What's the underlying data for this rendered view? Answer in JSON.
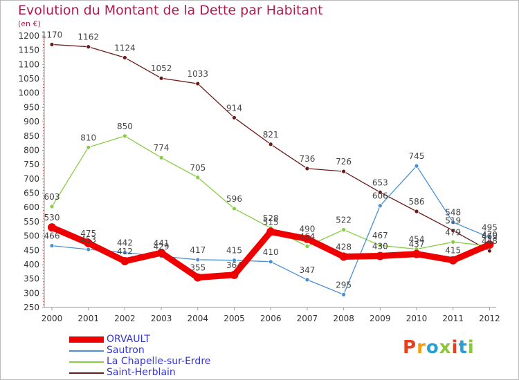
{
  "title": "Evolution du Montant de la Dette par Habitant",
  "subtitle": "(en €)",
  "brand": {
    "text": "Proxiti",
    "letter_colors": [
      "#e8401c",
      "#f39c12",
      "#2a9fd6",
      "#8cc63f",
      "#e8401c",
      "#2a9fd6",
      "#8cc63f"
    ]
  },
  "chart_data": {
    "type": "line",
    "x": [
      2000,
      2001,
      2002,
      2003,
      2004,
      2005,
      2006,
      2007,
      2008,
      2009,
      2010,
      2011,
      2012
    ],
    "ylim": [
      250,
      1200
    ],
    "yticks": [
      250,
      300,
      350,
      400,
      450,
      500,
      550,
      600,
      650,
      700,
      750,
      800,
      850,
      900,
      950,
      1000,
      1050,
      1100,
      1150,
      1200
    ],
    "grid": false,
    "legend_position": "bottom-left",
    "series": [
      {
        "name": "ORVAULT",
        "color": "#ee0000",
        "style": "thick",
        "values": [
          530,
          475,
          412,
          441,
          355,
          364,
          515,
          490,
          428,
          430,
          437,
          415,
          470
        ],
        "labels": [
          "530",
          "475",
          "412",
          "441",
          "355",
          "364",
          "515",
          "490",
          "428",
          "430",
          "437",
          "415",
          "470"
        ]
      },
      {
        "name": "Sautron",
        "color": "#4a8ed4",
        "style": "thin",
        "values": [
          466,
          453,
          442,
          429,
          417,
          415,
          410,
          347,
          295,
          606,
          745,
          548,
          495
        ],
        "labels": [
          "466",
          "453",
          "442",
          "429",
          "417",
          "415",
          "410",
          "347",
          "295",
          "606",
          "745",
          "548",
          "495"
        ]
      },
      {
        "name": "La Chapelle-sur-Erdre",
        "color": "#88cc44",
        "style": "thin",
        "values": [
          603,
          810,
          850,
          774,
          705,
          596,
          528,
          464,
          522,
          467,
          454,
          479,
          465
        ],
        "labels": [
          "603",
          "810",
          "850",
          "774",
          "705",
          "596",
          "528",
          "464",
          "522",
          "467",
          "454",
          "479",
          "465"
        ]
      },
      {
        "name": "Saint-Herblain",
        "color": "#6b1a1a",
        "style": "thin",
        "values": [
          1170,
          1162,
          1124,
          1052,
          1033,
          914,
          821,
          736,
          726,
          653,
          586,
          519,
          448
        ],
        "labels": [
          "1170",
          "1162",
          "1124",
          "1052",
          "1033",
          "914",
          "821",
          "736",
          "726",
          "653",
          "586",
          "519",
          "448"
        ]
      }
    ]
  }
}
